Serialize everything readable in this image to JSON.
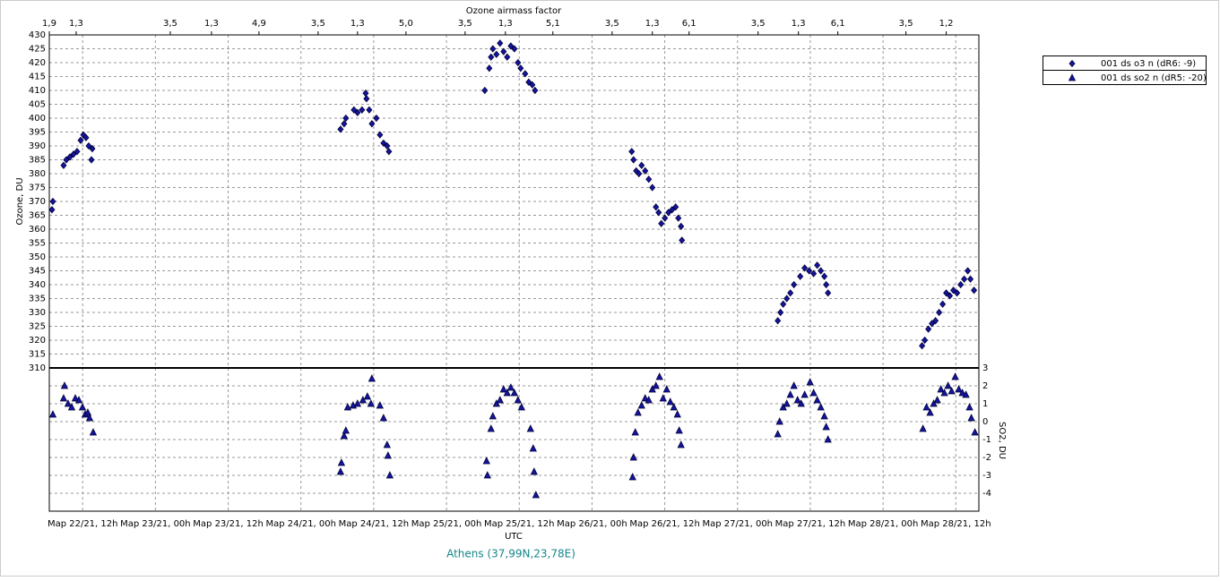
{
  "chart_data": {
    "type": "scatter",
    "x2_title": "Ozone airmass factor",
    "xlabel": "UTC",
    "ylabel": "Ozone, DU",
    "y2label": "SO2, DU",
    "footer": "Athens (37,99N,23,78E)",
    "grid": true,
    "legend": "upper-right-outside",
    "xlim": [
      6.5,
      159.8
    ],
    "xticks": [
      {
        "value": 12,
        "label": "Map 22/21, 12h"
      },
      {
        "value": 24,
        "label": "Map 23/21, 00h"
      },
      {
        "value": 36,
        "label": "Map 23/21, 12h"
      },
      {
        "value": 48,
        "label": "Map 24/21, 00h"
      },
      {
        "value": 60,
        "label": "Map 24/21, 12h"
      },
      {
        "value": 72,
        "label": "Map 25/21, 00h"
      },
      {
        "value": 84,
        "label": "Map 25/21, 12h"
      },
      {
        "value": 96,
        "label": "Map 26/21, 00h"
      },
      {
        "value": 108,
        "label": "Map 26/21, 12h"
      },
      {
        "value": 120,
        "label": "Map 27/21, 00h"
      },
      {
        "value": 132,
        "label": "Map 27/21, 12h"
      },
      {
        "value": 144,
        "label": "Map 28/21, 00h"
      },
      {
        "value": 156,
        "label": "Map 28/21, 12h"
      }
    ],
    "x2ticks": [
      {
        "value": 6.5,
        "label": "1,9"
      },
      {
        "value": 10.93,
        "label": "1,3"
      },
      {
        "value": 26.45,
        "label": "3,5"
      },
      {
        "value": 33.25,
        "label": "1,3"
      },
      {
        "value": 41.08,
        "label": "4,9"
      },
      {
        "value": 50.83,
        "label": "3,5"
      },
      {
        "value": 57.33,
        "label": "1,3"
      },
      {
        "value": 65.32,
        "label": "5,0"
      },
      {
        "value": 75.07,
        "label": "3,5"
      },
      {
        "value": 81.72,
        "label": "1,3"
      },
      {
        "value": 89.55,
        "label": "5,1"
      },
      {
        "value": 99.31,
        "label": "3,5"
      },
      {
        "value": 105.95,
        "label": "1,3"
      },
      {
        "value": 112.01,
        "label": "6,1"
      },
      {
        "value": 123.39,
        "label": "3,5"
      },
      {
        "value": 130.04,
        "label": "1,3"
      },
      {
        "value": 136.54,
        "label": "6,1"
      },
      {
        "value": 147.77,
        "label": "3,5"
      },
      {
        "value": 154.42,
        "label": "1,2"
      }
    ],
    "ylim": [
      310,
      430
    ],
    "yticks": [
      310,
      315,
      320,
      325,
      330,
      335,
      340,
      345,
      350,
      355,
      360,
      365,
      370,
      375,
      380,
      385,
      390,
      395,
      400,
      405,
      410,
      415,
      420,
      425,
      430
    ],
    "y2lim": [
      -5,
      3
    ],
    "y2ticks": [
      -4,
      -3,
      -2,
      -1,
      0,
      1,
      2,
      3
    ],
    "series": [
      {
        "name": "001 ds o3  n (dR6: -9)",
        "color": "#1414a0",
        "marker": "diamond",
        "x": [
          6.94,
          7.09,
          8.86,
          9.31,
          9.9,
          10.49,
          11.08,
          11.67,
          12.12,
          12.56,
          13.0,
          13.45,
          13.59,
          54.53,
          55.12,
          55.41,
          56.74,
          57.33,
          58.07,
          58.67,
          58.81,
          59.26,
          59.7,
          60.44,
          61.03,
          61.62,
          62.21,
          62.51,
          78.32,
          79.06,
          79.35,
          79.65,
          80.24,
          80.83,
          81.42,
          82.01,
          82.61,
          83.2,
          83.79,
          84.23,
          84.97,
          85.56,
          86.15,
          86.6,
          102.55,
          102.85,
          103.29,
          103.74,
          104.18,
          104.77,
          105.36,
          105.95,
          106.54,
          106.99,
          107.43,
          108.02,
          108.61,
          109.2,
          109.79,
          110.24,
          110.68,
          110.83,
          126.64,
          127.09,
          127.53,
          128.12,
          128.71,
          129.3,
          130.34,
          131.07,
          131.81,
          132.55,
          133.14,
          133.73,
          134.32,
          134.62,
          134.92,
          150.43,
          150.88,
          151.47,
          152.06,
          152.65,
          153.24,
          153.83,
          154.42,
          155.01,
          155.6,
          156.2,
          156.79,
          157.38,
          157.97,
          158.41,
          159.0
        ],
        "values": [
          367,
          370,
          383,
          385,
          386,
          387,
          388,
          392,
          394,
          393,
          390,
          385,
          389,
          396,
          398,
          400,
          403,
          402,
          403,
          409,
          407,
          403,
          398,
          400,
          394,
          391,
          390,
          388,
          410,
          418,
          422,
          425,
          423,
          427,
          424,
          422,
          426,
          425,
          420,
          418,
          416,
          413,
          412,
          410,
          388,
          385,
          381,
          380,
          383,
          381,
          378,
          375,
          368,
          366,
          362,
          364,
          366,
          367,
          368,
          364,
          361,
          356,
          327,
          330,
          333,
          335,
          337,
          340,
          343,
          346,
          345,
          344,
          347,
          345,
          343,
          340,
          337,
          318,
          320,
          324,
          326,
          327,
          330,
          333,
          337,
          336,
          338,
          337,
          340,
          342,
          345,
          342,
          338
        ]
      },
      {
        "name": "001 ds so2 n (dR5: -20)",
        "color": "#1414a0",
        "marker": "triangle",
        "axis": "y2",
        "x": [
          7.09,
          8.86,
          9.01,
          9.6,
          10.19,
          10.79,
          11.38,
          11.97,
          12.41,
          12.85,
          13.15,
          13.74,
          54.53,
          54.68,
          55.12,
          55.41,
          55.71,
          56.6,
          57.33,
          58.22,
          58.96,
          59.55,
          59.7,
          61.03,
          61.62,
          62.21,
          62.36,
          62.66,
          78.61,
          78.76,
          79.35,
          79.65,
          80.24,
          80.83,
          81.42,
          82.01,
          82.61,
          83.2,
          83.79,
          84.38,
          85.86,
          86.3,
          86.45,
          86.75,
          102.7,
          102.85,
          103.14,
          103.58,
          104.18,
          104.77,
          105.36,
          105.95,
          106.54,
          107.13,
          107.73,
          108.32,
          108.91,
          109.5,
          110.09,
          110.38,
          110.68,
          126.64,
          126.94,
          127.53,
          128.12,
          128.71,
          129.3,
          129.9,
          130.49,
          131.07,
          131.96,
          132.55,
          133.14,
          133.73,
          134.32,
          134.62,
          134.92,
          150.58,
          151.17,
          151.76,
          152.35,
          152.94,
          153.53,
          154.12,
          154.72,
          155.31,
          155.9,
          156.49,
          157.08,
          157.67,
          158.26,
          158.56,
          159.15
        ],
        "values": [
          0.4,
          1.3,
          2.0,
          1.0,
          0.8,
          1.3,
          1.2,
          0.8,
          0.4,
          0.5,
          0.2,
          -0.6,
          -2.8,
          -2.3,
          -0.8,
          -0.5,
          0.8,
          0.9,
          1.0,
          1.2,
          1.4,
          1.0,
          2.4,
          0.9,
          0.2,
          -1.3,
          -1.9,
          -3.0,
          -2.2,
          -3.0,
          -0.4,
          0.3,
          1.0,
          1.2,
          1.8,
          1.6,
          1.9,
          1.6,
          1.2,
          0.8,
          -0.4,
          -1.5,
          -2.8,
          -4.1,
          -3.1,
          -2.0,
          -0.6,
          0.5,
          0.9,
          1.3,
          1.2,
          1.8,
          2.0,
          2.5,
          1.3,
          1.8,
          1.1,
          0.8,
          0.4,
          -0.5,
          -1.3,
          -0.7,
          0.0,
          0.8,
          1.0,
          1.5,
          2.0,
          1.2,
          1.0,
          1.5,
          2.2,
          1.6,
          1.2,
          0.8,
          0.3,
          -0.3,
          -1.0,
          -0.4,
          0.8,
          0.5,
          1.0,
          1.2,
          1.8,
          1.6,
          2.0,
          1.7,
          2.5,
          1.8,
          1.6,
          1.5,
          0.8,
          0.2,
          -0.6
        ]
      }
    ]
  }
}
